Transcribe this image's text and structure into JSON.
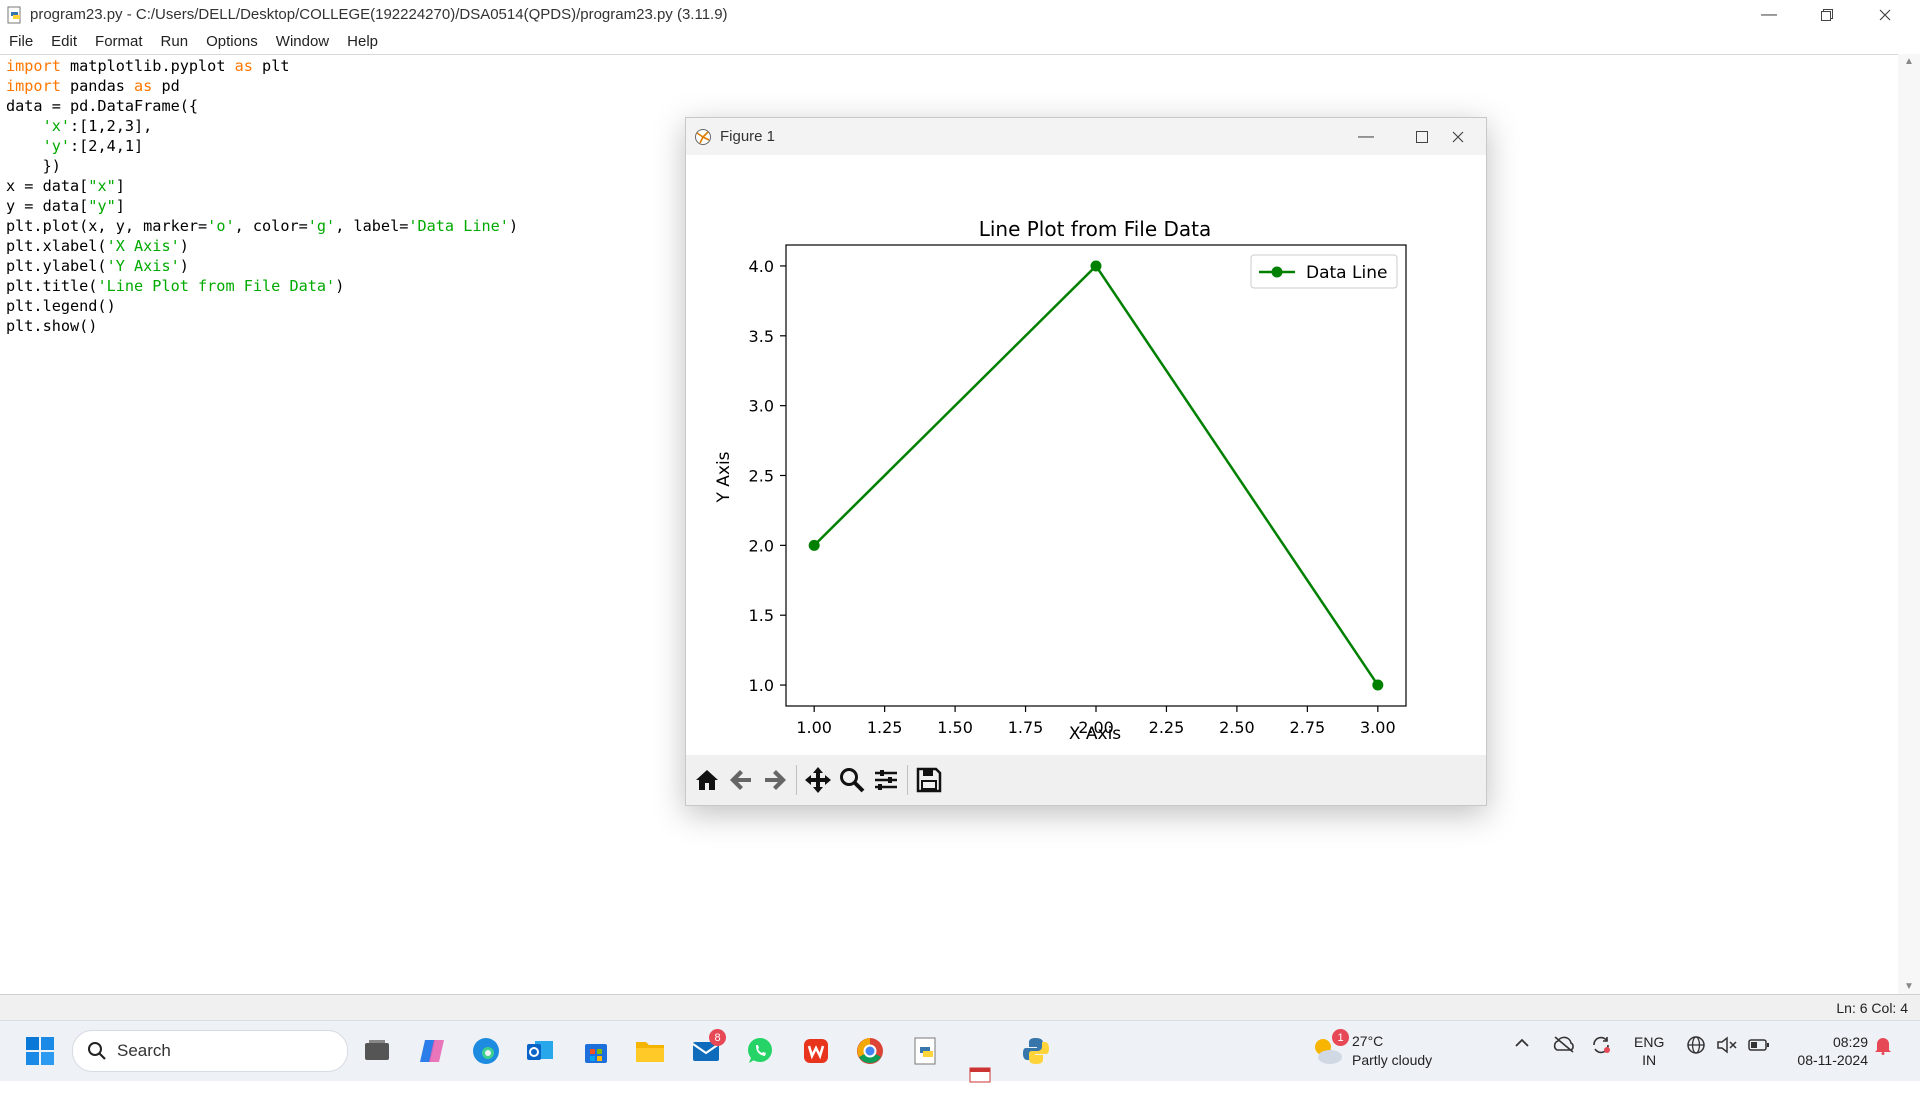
{
  "window": {
    "title": "program23.py - C:/Users/DELL/Desktop/COLLEGE(192224270)/DSA0514(QPDS)/program23.py (3.11.9)"
  },
  "menu": [
    "File",
    "Edit",
    "Format",
    "Run",
    "Options",
    "Window",
    "Help"
  ],
  "code": [
    [
      {
        "t": "import",
        "c": "kw"
      },
      {
        "t": " matplotlib.pyplot "
      },
      {
        "t": "as",
        "c": "kw"
      },
      {
        "t": " plt"
      }
    ],
    [
      {
        "t": "import",
        "c": "kw"
      },
      {
        "t": " pandas "
      },
      {
        "t": "as",
        "c": "kw"
      },
      {
        "t": " pd"
      }
    ],
    [
      {
        "t": "data = pd.DataFrame({"
      }
    ],
    [
      {
        "t": "    "
      },
      {
        "t": "'x'",
        "c": "str"
      },
      {
        "t": ":[1,2,3],"
      }
    ],
    [
      {
        "t": "    "
      },
      {
        "t": "'y'",
        "c": "str"
      },
      {
        "t": ":[2,4,1]"
      }
    ],
    [
      {
        "t": "    })"
      }
    ],
    [
      {
        "t": "x = data["
      },
      {
        "t": "\"x\"",
        "c": "str"
      },
      {
        "t": "]"
      }
    ],
    [
      {
        "t": "y = data["
      },
      {
        "t": "\"y\"",
        "c": "str"
      },
      {
        "t": "]"
      }
    ],
    [
      {
        "t": "plt.plot(x, y, marker="
      },
      {
        "t": "'o'",
        "c": "str"
      },
      {
        "t": ", color="
      },
      {
        "t": "'g'",
        "c": "str"
      },
      {
        "t": ", label="
      },
      {
        "t": "'Data Line'",
        "c": "str"
      },
      {
        "t": ")"
      }
    ],
    [
      {
        "t": "plt.xlabel("
      },
      {
        "t": "'X Axis'",
        "c": "str"
      },
      {
        "t": ")"
      }
    ],
    [
      {
        "t": "plt.ylabel("
      },
      {
        "t": "'Y Axis'",
        "c": "str"
      },
      {
        "t": ")"
      }
    ],
    [
      {
        "t": "plt.title("
      },
      {
        "t": "'Line Plot from File Data'",
        "c": "str"
      },
      {
        "t": ")"
      }
    ],
    [
      {
        "t": "plt.legend()"
      }
    ],
    [
      {
        "t": "plt.show()"
      }
    ]
  ],
  "status": {
    "position": "Ln: 6   Col: 4"
  },
  "figure_window": {
    "title": "Figure 1"
  },
  "chart_data": {
    "type": "line",
    "title": "Line Plot from File Data",
    "xlabel": "X Axis",
    "ylabel": "Y Axis",
    "series": [
      {
        "name": "Data Line",
        "color": "#008000",
        "marker": "o",
        "x": [
          1,
          2,
          3
        ],
        "y": [
          2,
          4,
          1
        ]
      }
    ],
    "xlim": [
      0.9,
      3.1
    ],
    "ylim": [
      0.85,
      4.15
    ],
    "x_ticks": [
      "1.00",
      "1.25",
      "1.50",
      "1.75",
      "2.00",
      "2.25",
      "2.50",
      "2.75",
      "3.00"
    ],
    "y_ticks": [
      "1.0",
      "1.5",
      "2.0",
      "2.5",
      "3.0",
      "3.5",
      "4.0"
    ],
    "legend": "top-right",
    "grid": false
  },
  "taskbar": {
    "search_placeholder": "Search",
    "store_badge": "8",
    "weather_badge": "1",
    "weather_temp": "27°C",
    "weather_desc": "Partly cloudy",
    "lang_top": "ENG",
    "lang_bottom": "IN",
    "time": "08:29",
    "date": "08-11-2024"
  }
}
